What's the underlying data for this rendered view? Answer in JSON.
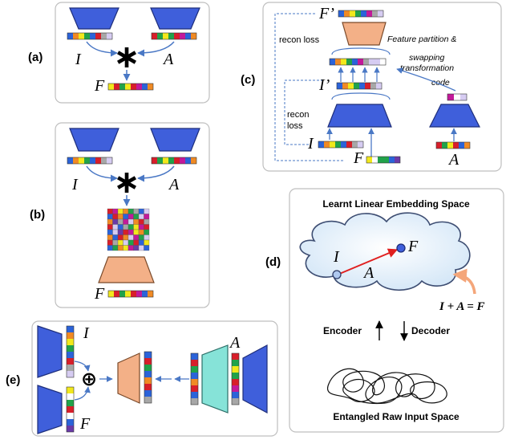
{
  "panel_labels": {
    "a": "(a)",
    "b": "(b)",
    "c": "(c)",
    "d": "(d)",
    "e": "(e)"
  },
  "symbols": {
    "I": "I",
    "A": "A",
    "F": "F",
    "I_prime": "I’",
    "F_prime": "F’",
    "star": "∗",
    "oplus": "⊕"
  },
  "panel_c": {
    "recon_loss_top": "recon loss",
    "recon_loss_left_1": "recon",
    "recon_loss_left_2": "loss",
    "note_1": "Feature partition &",
    "note_2": "swapping",
    "note_3": "transformation",
    "note_4": "code"
  },
  "panel_d": {
    "title": "Learnt Linear Embedding Space",
    "equation": "I + A = F",
    "encoder": "Encoder",
    "decoder": "Decoder",
    "bottom": "Entangled Raw Input Space"
  },
  "colors": {
    "encoder": "#3F5FDB",
    "decoder": "#F3B087",
    "teal": "#86E3D8",
    "code_red": "#D81E2A",
    "code_orange": "#F08A24",
    "code_yellow": "#F2E81C",
    "code_green": "#21A24A",
    "code_blue": "#2B63D9",
    "code_purple": "#6A3AA8",
    "code_magenta": "#C3199A",
    "code_gray": "#A7A7A7",
    "code_lilac": "#D6CCF2",
    "arrow": "#4A78C5",
    "red_arrow": "#E02020",
    "orange_arrow": "#F4A67A"
  }
}
